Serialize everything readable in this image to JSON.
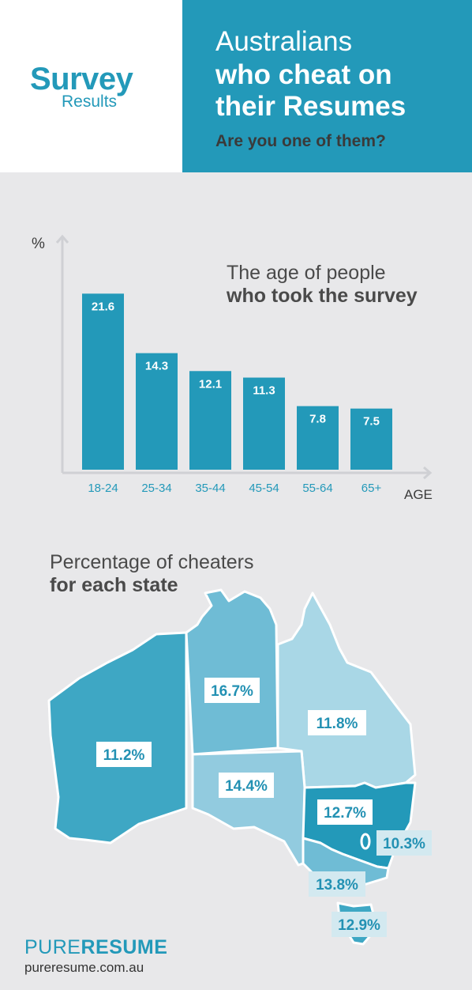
{
  "header": {
    "logo_main": "Survey",
    "logo_sub": "Results",
    "title_line1": "Australians",
    "title_line2": "who cheat on",
    "title_line3": "their Resumes",
    "subtitle": "Are you one of them?"
  },
  "chart_heading": {
    "line1": "The age of people",
    "line2": "who took the survey"
  },
  "chart_data": {
    "type": "bar",
    "categories": [
      "18-24",
      "25-34",
      "35-44",
      "45-54",
      "55-64",
      "65+"
    ],
    "values": [
      21.6,
      14.3,
      12.1,
      11.3,
      7.8,
      7.5
    ],
    "value_labels": [
      "21.6",
      "14.3",
      "12.1",
      "11.3",
      "7.8",
      "7.5"
    ],
    "ylabel": "%",
    "xlabel": "AGE",
    "ylim": [
      0,
      26
    ],
    "bar_color": "#2399b9"
  },
  "map": {
    "heading_line1": "Percentage of cheaters",
    "heading_line2": "for each state",
    "states": [
      {
        "label": "11.2%",
        "color": "#3ea7c4"
      },
      {
        "label": "16.7%",
        "color": "#6fbcd5"
      },
      {
        "label": "11.8%",
        "color": "#a9d7e6"
      },
      {
        "label": "14.4%",
        "color": "#92cbdf"
      },
      {
        "label": "12.7%",
        "color": "#2399b9"
      },
      {
        "label": "10.3%",
        "color": "#2399b9"
      },
      {
        "label": "13.8%",
        "color": "#6fbcd5"
      },
      {
        "label": "12.9%",
        "color": "#3ea7c4"
      }
    ]
  },
  "footer": {
    "brand_light": "PURE",
    "brand_bold": "RESUME",
    "url": "pureresume.com.au"
  },
  "colors": {
    "accent": "#2399b9",
    "background": "#e8e8ea"
  }
}
